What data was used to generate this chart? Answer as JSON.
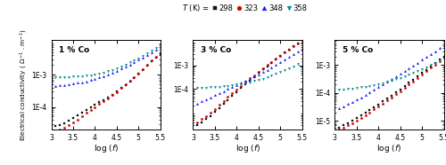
{
  "temperatures": [
    298,
    323,
    348,
    358
  ],
  "temp_colors": [
    "#111111",
    "#cc0000",
    "#1a1aff",
    "#008B8B"
  ],
  "temp_markers": [
    "s",
    "o",
    "^",
    "v"
  ],
  "panels": [
    {
      "label": "1 % Co",
      "xlim": [
        3.0,
        5.5
      ],
      "ylim": [
        2e-05,
        0.012
      ],
      "yticks": [
        0.0001,
        0.001
      ],
      "ytick_labels": [
        "1E-4",
        "1E-3"
      ],
      "show_ylabel": true,
      "data": {
        "298": {
          "x": [
            3.1,
            3.2,
            3.3,
            3.4,
            3.5,
            3.6,
            3.7,
            3.8,
            3.9,
            4.0,
            4.1,
            4.2,
            4.3,
            4.4,
            4.5,
            4.6,
            4.7,
            4.8,
            4.9,
            5.0,
            5.1,
            5.2,
            5.3,
            5.4,
            5.5
          ],
          "y": [
            2.5e-05,
            2.8e-05,
            3.2e-05,
            3.8e-05,
            4.5e-05,
            5.5e-05,
            6.8e-05,
            8.2e-05,
            0.0001,
            0.00012,
            0.00014,
            0.000165,
            0.0002,
            0.00024,
            0.0003,
            0.00038,
            0.00048,
            0.00062,
            0.0008,
            0.00105,
            0.0014,
            0.00185,
            0.0025,
            0.0033,
            0.0044
          ]
        },
        "323": {
          "x": [
            3.1,
            3.2,
            3.3,
            3.4,
            3.5,
            3.6,
            3.7,
            3.8,
            3.9,
            4.0,
            4.1,
            4.2,
            4.3,
            4.4,
            4.5,
            4.6,
            4.7,
            4.8,
            4.9,
            5.0,
            5.1,
            5.2,
            5.3,
            5.4,
            5.5
          ],
          "y": [
            1.8e-05,
            2e-05,
            2.3e-05,
            2.7e-05,
            3.3e-05,
            4.1e-05,
            5.2e-05,
            6.5e-05,
            8.2e-05,
            0.0001,
            0.000122,
            0.00015,
            0.000185,
            0.00023,
            0.00029,
            0.00038,
            0.00049,
            0.00064,
            0.00084,
            0.0011,
            0.0015,
            0.002,
            0.0027,
            0.0036,
            0.0048
          ]
        },
        "348": {
          "x": [
            3.1,
            3.2,
            3.3,
            3.4,
            3.5,
            3.6,
            3.7,
            3.8,
            3.9,
            4.0,
            4.1,
            4.2,
            4.3,
            4.4,
            4.5,
            4.6,
            4.7,
            4.8,
            4.9,
            5.0,
            5.1,
            5.2,
            5.3,
            5.4,
            5.5
          ],
          "y": [
            0.00045,
            0.00046,
            0.00048,
            0.0005,
            0.00052,
            0.00055,
            0.00058,
            0.00062,
            0.00067,
            0.00073,
            0.00081,
            0.0009,
            0.00101,
            0.00115,
            0.00132,
            0.00152,
            0.00175,
            0.00205,
            0.0024,
            0.00285,
            0.0034,
            0.0041,
            0.005,
            0.006,
            0.0072
          ]
        },
        "358": {
          "x": [
            3.1,
            3.2,
            3.3,
            3.4,
            3.5,
            3.6,
            3.7,
            3.8,
            3.9,
            4.0,
            4.1,
            4.2,
            4.3,
            4.4,
            4.5,
            4.6,
            4.7,
            4.8,
            4.9,
            5.0,
            5.1,
            5.2,
            5.3,
            5.4,
            5.5
          ],
          "y": [
            0.00082,
            0.00083,
            0.00084,
            0.00085,
            0.00086,
            0.00088,
            0.0009,
            0.00093,
            0.00097,
            0.00102,
            0.00108,
            0.00116,
            0.00126,
            0.0014,
            0.00157,
            0.00178,
            0.00203,
            0.00235,
            0.00272,
            0.0032,
            0.0038,
            0.0046,
            0.0055,
            0.0066,
            0.008
          ]
        }
      }
    },
    {
      "label": "3 % Co",
      "xlim": [
        3.0,
        5.5
      ],
      "ylim": [
        2e-06,
        0.012
      ],
      "yticks": [
        0.0001,
        0.001
      ],
      "ytick_labels": [
        "1E-4",
        "1E-3"
      ],
      "show_ylabel": false,
      "data": {
        "298": {
          "x": [
            3.1,
            3.2,
            3.3,
            3.4,
            3.5,
            3.6,
            3.7,
            3.8,
            3.9,
            4.0,
            4.1,
            4.2,
            4.3,
            4.4,
            4.5,
            4.6,
            4.7,
            4.8,
            4.9,
            5.0,
            5.1,
            5.2,
            5.3,
            5.4,
            5.5
          ],
          "y": [
            3e-06,
            4e-06,
            5.5e-06,
            7.5e-06,
            1.1e-05,
            1.6e-05,
            2.4e-05,
            3.5e-05,
            5.2e-05,
            7.5e-05,
            0.00011,
            0.00016,
            0.00023,
            0.00033,
            0.00047,
            0.00066,
            0.00092,
            0.00128,
            0.00178,
            0.00245,
            0.0034,
            0.0047,
            0.0064,
            0.0086,
            0.0114
          ]
        },
        "323": {
          "x": [
            3.1,
            3.2,
            3.3,
            3.4,
            3.5,
            3.6,
            3.7,
            3.8,
            3.9,
            4.0,
            4.1,
            4.2,
            4.3,
            4.4,
            4.5,
            4.6,
            4.7,
            4.8,
            4.9,
            5.0,
            5.1,
            5.2,
            5.3,
            5.4,
            5.5
          ],
          "y": [
            4e-06,
            5.5e-06,
            7.5e-06,
            1.05e-05,
            1.5e-05,
            2.2e-05,
            3.2e-05,
            4.7e-05,
            6.8e-05,
            9.8e-05,
            0.00014,
            0.0002,
            0.00028,
            0.00039,
            0.00054,
            0.00074,
            0.00101,
            0.00138,
            0.00188,
            0.00255,
            0.00345,
            0.00465,
            0.0062,
            0.0082,
            0.0108
          ]
        },
        "348": {
          "x": [
            3.1,
            3.2,
            3.3,
            3.4,
            3.5,
            3.6,
            3.7,
            3.8,
            3.9,
            4.0,
            4.1,
            4.2,
            4.3,
            4.4,
            4.5,
            4.6,
            4.7,
            4.8,
            4.9,
            5.0,
            5.1,
            5.2,
            5.3,
            5.4,
            5.5
          ],
          "y": [
            2.5e-05,
            3e-05,
            3.7e-05,
            4.5e-05,
            5.5e-05,
            6.8e-05,
            8.3e-05,
            0.000101,
            0.000123,
            0.00015,
            0.000183,
            0.000224,
            0.000275,
            0.00034,
            0.00042,
            0.00052,
            0.00065,
            0.00082,
            0.00104,
            0.00132,
            0.0017,
            0.0022,
            0.00285,
            0.0037,
            0.0048
          ]
        },
        "358": {
          "x": [
            3.1,
            3.2,
            3.3,
            3.4,
            3.5,
            3.6,
            3.7,
            3.8,
            3.9,
            4.0,
            4.1,
            4.2,
            4.3,
            4.4,
            4.5,
            4.6,
            4.7,
            4.8,
            4.9,
            5.0,
            5.1,
            5.2,
            5.3,
            5.4,
            5.5
          ],
          "y": [
            0.00011,
            0.000112,
            0.000115,
            0.000118,
            0.000122,
            0.000126,
            0.000131,
            0.000137,
            0.000144,
            0.000153,
            0.000164,
            0.000178,
            0.000196,
            0.000218,
            0.000245,
            0.000278,
            0.000318,
            0.000368,
            0.00043,
            0.00051,
            0.00061,
            0.00075,
            0.00092,
            0.00114,
            0.00142
          ]
        }
      }
    },
    {
      "label": "5 % Co",
      "xlim": [
        3.0,
        5.5
      ],
      "ylim": [
        5e-06,
        0.008
      ],
      "yticks": [
        1e-05,
        0.0001,
        0.001
      ],
      "ytick_labels": [
        "1E-5",
        "1E-4",
        "1E-3"
      ],
      "show_ylabel": false,
      "data": {
        "298": {
          "x": [
            3.1,
            3.2,
            3.3,
            3.4,
            3.5,
            3.6,
            3.7,
            3.8,
            3.9,
            4.0,
            4.1,
            4.2,
            4.3,
            4.4,
            4.5,
            4.6,
            4.7,
            4.8,
            4.9,
            5.0,
            5.1,
            5.2,
            5.3,
            5.4,
            5.5
          ],
          "y": [
            6e-06,
            7e-06,
            8.5e-06,
            1e-05,
            1.25e-05,
            1.55e-05,
            1.95e-05,
            2.45e-05,
            3.1e-05,
            3.9e-05,
            5e-05,
            6.4e-05,
            8.2e-05,
            0.000105,
            0.000136,
            0.000176,
            0.00023,
            0.0003,
            0.00039,
            0.00051,
            0.00067,
            0.00088,
            0.00116,
            0.00152,
            0.002
          ]
        },
        "323": {
          "x": [
            3.1,
            3.2,
            3.3,
            3.4,
            3.5,
            3.6,
            3.7,
            3.8,
            3.9,
            4.0,
            4.1,
            4.2,
            4.3,
            4.4,
            4.5,
            4.6,
            4.7,
            4.8,
            4.9,
            5.0,
            5.1,
            5.2,
            5.3,
            5.4,
            5.5
          ],
          "y": [
            5e-06,
            5.8e-06,
            7e-06,
            8.5e-06,
            1.05e-05,
            1.3e-05,
            1.62e-05,
            2.04e-05,
            2.6e-05,
            3.3e-05,
            4.2e-05,
            5.4e-05,
            7e-05,
            9e-05,
            0.000117,
            0.000153,
            0.0002,
            0.000263,
            0.000346,
            0.000456,
            0.0006,
            0.00079,
            0.00104,
            0.00137,
            0.0018
          ]
        },
        "348": {
          "x": [
            3.1,
            3.2,
            3.3,
            3.4,
            3.5,
            3.6,
            3.7,
            3.8,
            3.9,
            4.0,
            4.1,
            4.2,
            4.3,
            4.4,
            4.5,
            4.6,
            4.7,
            4.8,
            4.9,
            5.0,
            5.1,
            5.2,
            5.3,
            5.4,
            5.5
          ],
          "y": [
            2.8e-05,
            3.3e-05,
            4e-05,
            4.8e-05,
            5.8e-05,
            7.1e-05,
            8.7e-05,
            0.000107,
            0.000132,
            0.000163,
            0.000202,
            0.00025,
            0.000312,
            0.00039,
            0.000488,
            0.00061,
            0.000765,
            0.00096,
            0.00121,
            0.00153,
            0.00193,
            0.00245,
            0.0031,
            0.00393,
            0.005
          ]
        },
        "358": {
          "x": [
            3.1,
            3.2,
            3.3,
            3.4,
            3.5,
            3.6,
            3.7,
            3.8,
            3.9,
            4.0,
            4.1,
            4.2,
            4.3,
            4.4,
            4.5,
            4.6,
            4.7,
            4.8,
            4.9,
            5.0,
            5.1,
            5.2,
            5.3,
            5.4,
            5.5
          ],
          "y": [
            0.00013,
            0.000135,
            0.00014,
            0.000146,
            0.000152,
            0.00016,
            0.000169,
            0.00018,
            0.000192,
            0.000207,
            0.000225,
            0.000247,
            0.000274,
            0.000306,
            0.000345,
            0.000392,
            0.00045,
            0.00052,
            0.000605,
            0.00071,
            0.00084,
            0.001,
            0.0012,
            0.00145,
            0.00175
          ]
        }
      }
    }
  ],
  "xticks": [
    3.0,
    3.5,
    4.0,
    4.5,
    5.0,
    5.5
  ],
  "background_color": "#ffffff",
  "legend_title": "T (K) ="
}
